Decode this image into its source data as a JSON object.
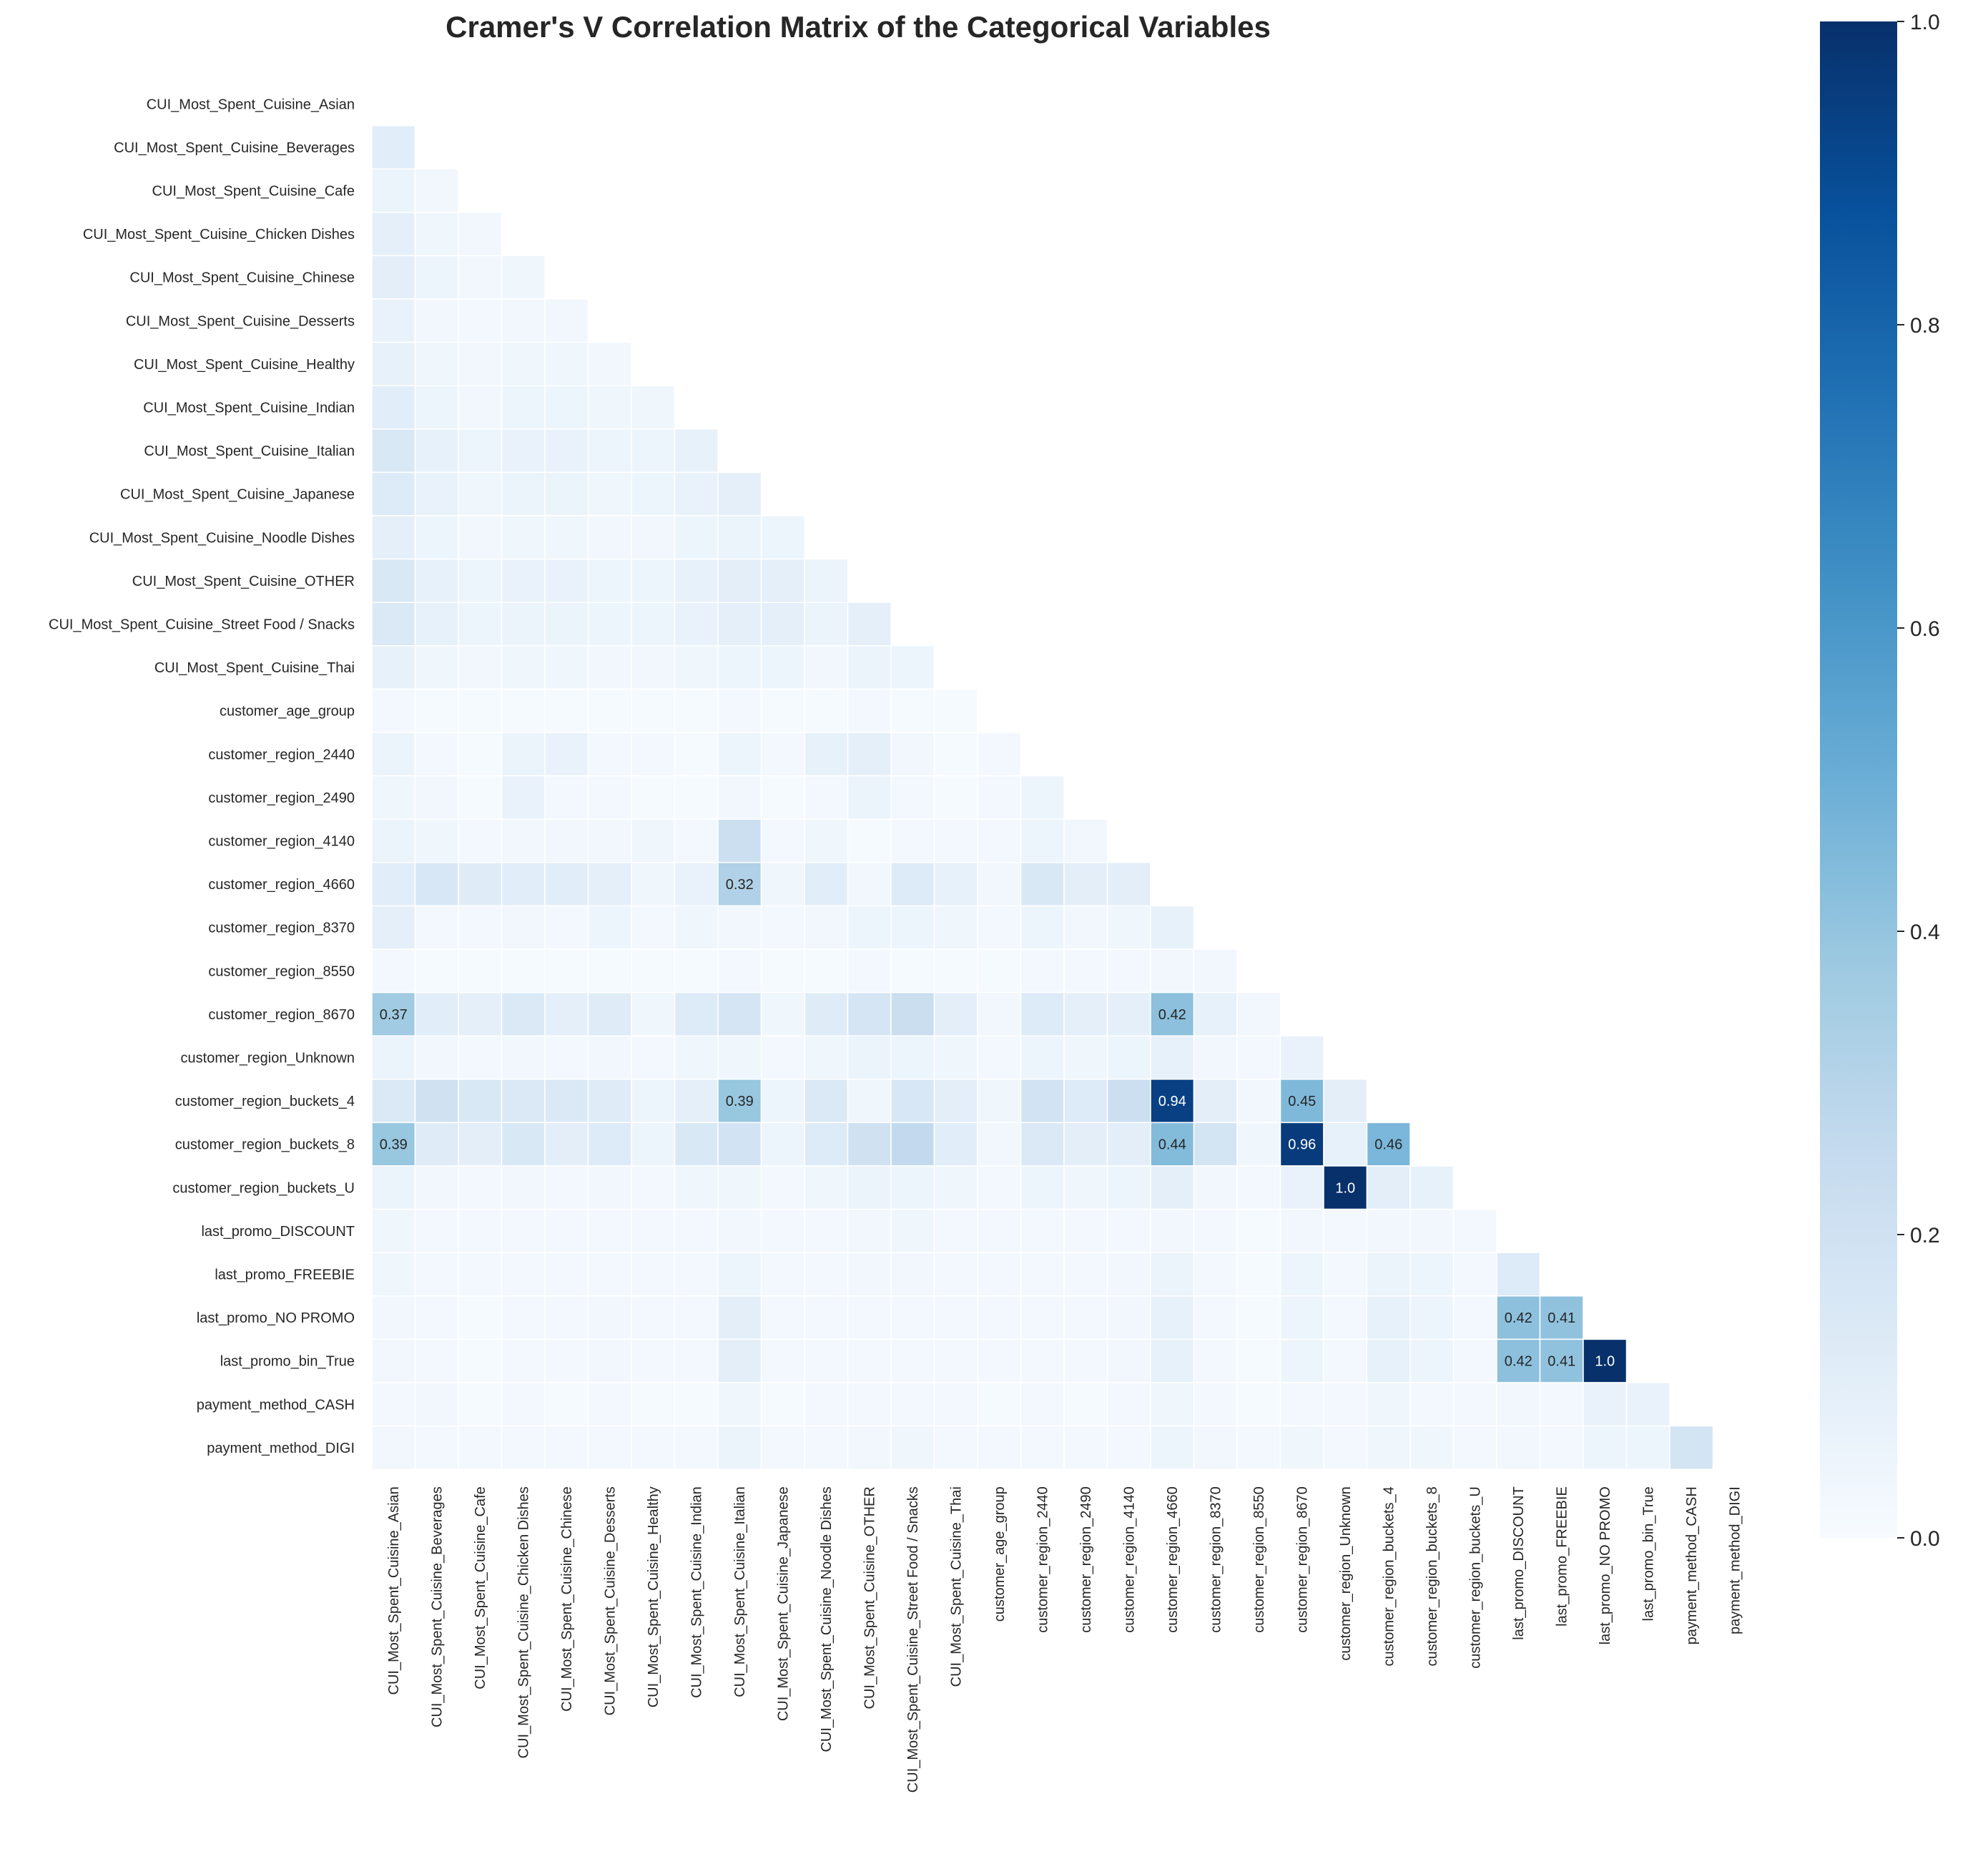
{
  "chart_data": {
    "type": "heatmap",
    "title": "Cramer's V Correlation Matrix of the Categorical Variables",
    "labels": [
      "CUI_Most_Spent_Cuisine_Asian",
      "CUI_Most_Spent_Cuisine_Beverages",
      "CUI_Most_Spent_Cuisine_Cafe",
      "CUI_Most_Spent_Cuisine_Chicken Dishes",
      "CUI_Most_Spent_Cuisine_Chinese",
      "CUI_Most_Spent_Cuisine_Desserts",
      "CUI_Most_Spent_Cuisine_Healthy",
      "CUI_Most_Spent_Cuisine_Indian",
      "CUI_Most_Spent_Cuisine_Italian",
      "CUI_Most_Spent_Cuisine_Japanese",
      "CUI_Most_Spent_Cuisine_Noodle Dishes",
      "CUI_Most_Spent_Cuisine_OTHER",
      "CUI_Most_Spent_Cuisine_Street Food / Snacks",
      "CUI_Most_Spent_Cuisine_Thai",
      "customer_age_group",
      "customer_region_2440",
      "customer_region_2490",
      "customer_region_4140",
      "customer_region_4660",
      "customer_region_8370",
      "customer_region_8550",
      "customer_region_8670",
      "customer_region_Unknown",
      "customer_region_buckets_4",
      "customer_region_buckets_8",
      "customer_region_buckets_U",
      "last_promo_DISCOUNT",
      "last_promo_FREEBIE",
      "last_promo_NO PROMO",
      "last_promo_bin_True",
      "payment_method_CASH",
      "payment_method_DIGI"
    ],
    "matrix_lower": [
      [],
      [
        0.11
      ],
      [
        0.06,
        0.03
      ],
      [
        0.09,
        0.04,
        0.03
      ],
      [
        0.1,
        0.05,
        0.03,
        0.04
      ],
      [
        0.07,
        0.03,
        0.02,
        0.03,
        0.03
      ],
      [
        0.08,
        0.04,
        0.03,
        0.04,
        0.04,
        0.03
      ],
      [
        0.11,
        0.05,
        0.03,
        0.05,
        0.05,
        0.04,
        0.04
      ],
      [
        0.15,
        0.08,
        0.05,
        0.07,
        0.07,
        0.05,
        0.05,
        0.08
      ],
      [
        0.13,
        0.07,
        0.04,
        0.06,
        0.06,
        0.04,
        0.05,
        0.07,
        0.09
      ],
      [
        0.09,
        0.05,
        0.03,
        0.04,
        0.04,
        0.03,
        0.03,
        0.05,
        0.06,
        0.05
      ],
      [
        0.15,
        0.08,
        0.05,
        0.07,
        0.07,
        0.05,
        0.05,
        0.08,
        0.1,
        0.09,
        0.06
      ],
      [
        0.14,
        0.08,
        0.05,
        0.06,
        0.06,
        0.05,
        0.05,
        0.07,
        0.09,
        0.09,
        0.06,
        0.09
      ],
      [
        0.08,
        0.04,
        0.03,
        0.04,
        0.04,
        0.03,
        0.03,
        0.04,
        0.05,
        0.05,
        0.03,
        0.06,
        0.05
      ],
      [
        0.02,
        0.01,
        0.01,
        0.01,
        0.01,
        0.01,
        0.01,
        0.01,
        0.02,
        0.01,
        0.01,
        0.02,
        0.01,
        0.01
      ],
      [
        0.06,
        0.02,
        0.01,
        0.06,
        0.07,
        0.02,
        0.02,
        0.01,
        0.05,
        0.02,
        0.08,
        0.09,
        0.03,
        0.01,
        0.02
      ],
      [
        0.04,
        0.03,
        0.01,
        0.07,
        0.02,
        0.02,
        0.01,
        0.01,
        0.03,
        0.01,
        0.02,
        0.06,
        0.02,
        0.01,
        0.02,
        0.05
      ],
      [
        0.06,
        0.04,
        0.02,
        0.03,
        0.03,
        0.03,
        0.04,
        0.02,
        0.22,
        0.02,
        0.04,
        0.01,
        0.02,
        0.02,
        0.02,
        0.05,
        0.03
      ],
      [
        0.11,
        0.16,
        0.12,
        0.11,
        0.11,
        0.09,
        0.04,
        0.07,
        0.32,
        0.04,
        0.11,
        0.03,
        0.13,
        0.08,
        0.03,
        0.15,
        0.1,
        0.1
      ],
      [
        0.09,
        0.02,
        0.02,
        0.03,
        0.02,
        0.05,
        0.02,
        0.04,
        0.03,
        0.02,
        0.03,
        0.05,
        0.05,
        0.04,
        0.02,
        0.05,
        0.03,
        0.04,
        0.08
      ],
      [
        0.02,
        0.01,
        0.01,
        0.01,
        0.01,
        0.01,
        0.01,
        0.01,
        0.02,
        0.01,
        0.01,
        0.02,
        0.01,
        0.01,
        0.01,
        0.02,
        0.02,
        0.02,
        0.03,
        0.03
      ],
      [
        0.37,
        0.11,
        0.09,
        0.14,
        0.09,
        0.12,
        0.04,
        0.13,
        0.17,
        0.04,
        0.12,
        0.17,
        0.23,
        0.1,
        0.03,
        0.13,
        0.09,
        0.09,
        0.42,
        0.08,
        0.03
      ],
      [
        0.06,
        0.03,
        0.02,
        0.03,
        0.02,
        0.03,
        0.02,
        0.04,
        0.04,
        0.02,
        0.04,
        0.06,
        0.05,
        0.04,
        0.02,
        0.05,
        0.04,
        0.05,
        0.08,
        0.03,
        0.02,
        0.07
      ],
      [
        0.14,
        0.2,
        0.15,
        0.14,
        0.14,
        0.12,
        0.05,
        0.09,
        0.39,
        0.05,
        0.14,
        0.04,
        0.16,
        0.1,
        0.04,
        0.19,
        0.13,
        0.22,
        0.94,
        0.1,
        0.03,
        0.45,
        0.1
      ],
      [
        0.39,
        0.12,
        0.1,
        0.15,
        0.1,
        0.13,
        0.05,
        0.15,
        0.19,
        0.05,
        0.13,
        0.2,
        0.26,
        0.11,
        0.03,
        0.14,
        0.1,
        0.1,
        0.44,
        0.18,
        0.04,
        0.96,
        0.08,
        0.46
      ],
      [
        0.06,
        0.03,
        0.02,
        0.03,
        0.02,
        0.03,
        0.02,
        0.04,
        0.04,
        0.02,
        0.04,
        0.06,
        0.05,
        0.04,
        0.02,
        0.05,
        0.04,
        0.05,
        0.09,
        0.03,
        0.02,
        0.07,
        1.0,
        0.1,
        0.08
      ],
      [
        0.04,
        0.02,
        0.02,
        0.02,
        0.02,
        0.02,
        0.02,
        0.02,
        0.03,
        0.02,
        0.02,
        0.03,
        0.04,
        0.02,
        0.02,
        0.02,
        0.02,
        0.02,
        0.03,
        0.02,
        0.01,
        0.03,
        0.02,
        0.03,
        0.03,
        0.02
      ],
      [
        0.04,
        0.02,
        0.02,
        0.02,
        0.02,
        0.02,
        0.02,
        0.02,
        0.05,
        0.02,
        0.02,
        0.03,
        0.03,
        0.02,
        0.02,
        0.02,
        0.02,
        0.03,
        0.06,
        0.02,
        0.01,
        0.05,
        0.02,
        0.06,
        0.05,
        0.02,
        0.13
      ],
      [
        0.03,
        0.02,
        0.01,
        0.02,
        0.02,
        0.03,
        0.02,
        0.02,
        0.1,
        0.02,
        0.02,
        0.02,
        0.02,
        0.02,
        0.02,
        0.02,
        0.02,
        0.03,
        0.08,
        0.02,
        0.01,
        0.05,
        0.02,
        0.08,
        0.05,
        0.02,
        0.42,
        0.41
      ],
      [
        0.03,
        0.02,
        0.01,
        0.02,
        0.02,
        0.03,
        0.02,
        0.02,
        0.1,
        0.02,
        0.02,
        0.02,
        0.02,
        0.02,
        0.02,
        0.02,
        0.02,
        0.03,
        0.08,
        0.02,
        0.01,
        0.05,
        0.02,
        0.08,
        0.05,
        0.02,
        0.42,
        0.41,
        1.0
      ],
      [
        0.02,
        0.03,
        0.01,
        0.02,
        0.01,
        0.02,
        0.01,
        0.01,
        0.04,
        0.01,
        0.02,
        0.02,
        0.02,
        0.02,
        0.01,
        0.02,
        0.01,
        0.02,
        0.04,
        0.02,
        0.01,
        0.02,
        0.02,
        0.04,
        0.02,
        0.02,
        0.03,
        0.02,
        0.07,
        0.07
      ],
      [
        0.03,
        0.02,
        0.02,
        0.02,
        0.02,
        0.02,
        0.02,
        0.02,
        0.06,
        0.02,
        0.02,
        0.03,
        0.04,
        0.02,
        0.02,
        0.02,
        0.02,
        0.02,
        0.05,
        0.03,
        0.02,
        0.04,
        0.02,
        0.04,
        0.04,
        0.02,
        0.03,
        0.02,
        0.05,
        0.05,
        0.18
      ]
    ],
    "annotated_cells": [
      {
        "row": "customer_region_4660",
        "col": "CUI_Most_Spent_Cuisine_Italian",
        "value": "0.32"
      },
      {
        "row": "customer_region_8670",
        "col": "CUI_Most_Spent_Cuisine_Asian",
        "value": "0.37"
      },
      {
        "row": "customer_region_8670",
        "col": "customer_region_4660",
        "value": "0.42"
      },
      {
        "row": "customer_region_buckets_4",
        "col": "CUI_Most_Spent_Cuisine_Italian",
        "value": "0.39"
      },
      {
        "row": "customer_region_buckets_4",
        "col": "customer_region_4660",
        "value": "0.94"
      },
      {
        "row": "customer_region_buckets_4",
        "col": "customer_region_8670",
        "value": "0.45"
      },
      {
        "row": "customer_region_buckets_8",
        "col": "CUI_Most_Spent_Cuisine_Asian",
        "value": "0.39"
      },
      {
        "row": "customer_region_buckets_8",
        "col": "customer_region_4660",
        "value": "0.44"
      },
      {
        "row": "customer_region_buckets_8",
        "col": "customer_region_8670",
        "value": "0.96"
      },
      {
        "row": "customer_region_buckets_8",
        "col": "customer_region_buckets_4",
        "value": "0.46"
      },
      {
        "row": "customer_region_buckets_U",
        "col": "customer_region_Unknown",
        "value": "1.0"
      },
      {
        "row": "last_promo_NO PROMO",
        "col": "last_promo_DISCOUNT",
        "value": "0.42"
      },
      {
        "row": "last_promo_NO PROMO",
        "col": "last_promo_FREEBIE",
        "value": "0.41"
      },
      {
        "row": "last_promo_bin_True",
        "col": "last_promo_DISCOUNT",
        "value": "0.42"
      },
      {
        "row": "last_promo_bin_True",
        "col": "last_promo_FREEBIE",
        "value": "0.41"
      },
      {
        "row": "last_promo_bin_True",
        "col": "last_promo_NO PROMO",
        "value": "1.0"
      }
    ],
    "colorbar": {
      "cmap": "Blues",
      "range": [
        0.0,
        1.0
      ],
      "ticks": [
        "0.0",
        "0.2",
        "0.4",
        "0.6",
        "0.8",
        "1.0"
      ]
    },
    "mask": "upper triangle including diagonal",
    "grid": true
  }
}
